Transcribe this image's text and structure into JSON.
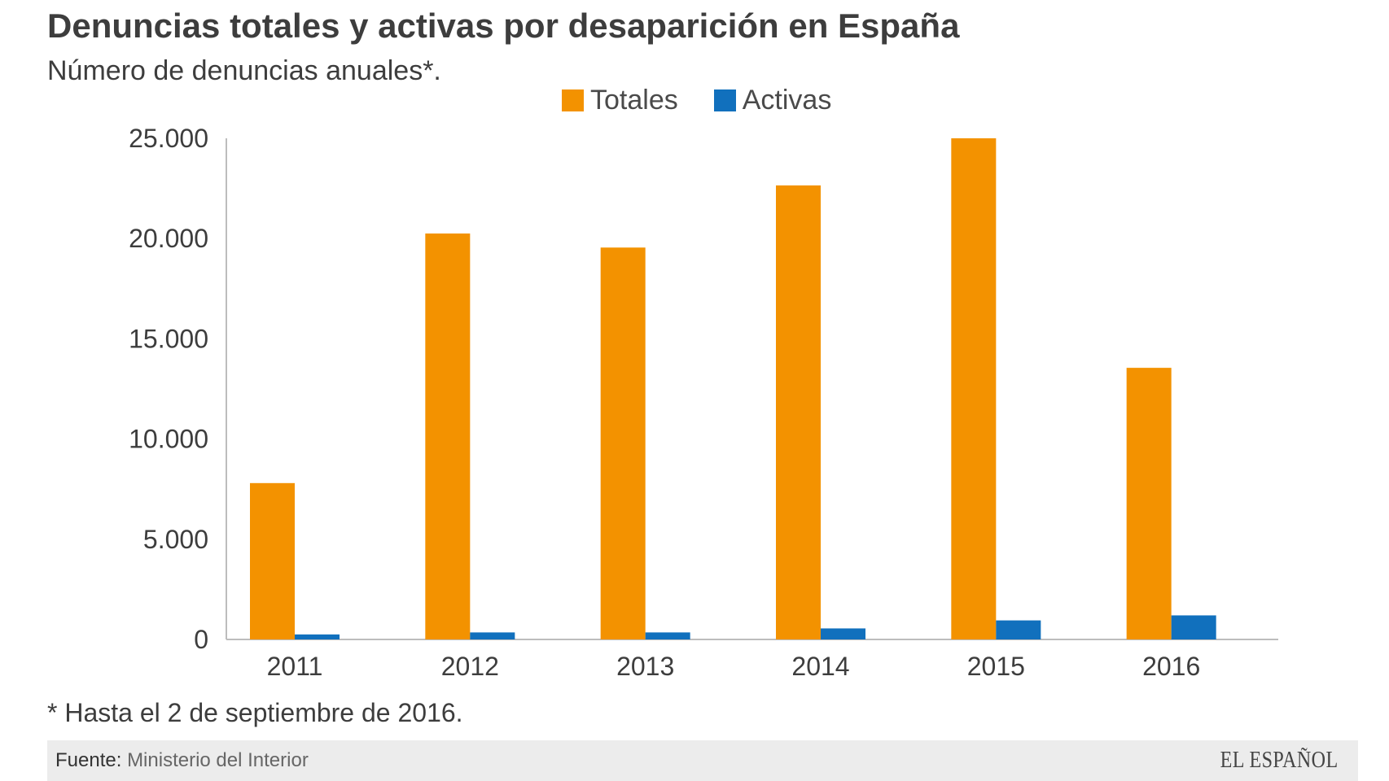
{
  "title": "Denuncias totales y activas por desaparición en España",
  "subtitle": "Número de denuncias anuales*.",
  "note": "* Hasta el 2 de septiembre de 2016.",
  "footer": {
    "source_label": "Fuente:",
    "source_value": "Ministerio del Interior",
    "brand": "EL ESPAÑOL"
  },
  "colors": {
    "totales": "#f39200",
    "activas": "#1170bd",
    "axis": "#bdbdbd",
    "tick_text": "#3d3d3d"
  },
  "chart_data": {
    "type": "bar",
    "categories": [
      "2011",
      "2012",
      "2013",
      "2014",
      "2015",
      "2016"
    ],
    "series": [
      {
        "name": "Totales",
        "values": [
          7800,
          20250,
          19550,
          22650,
          25000,
          13550
        ]
      },
      {
        "name": "Activas",
        "values": [
          250,
          350,
          350,
          550,
          950,
          1200
        ]
      }
    ],
    "ylim": [
      0,
      25000
    ],
    "yticks": [
      0,
      5000,
      10000,
      15000,
      20000,
      25000
    ],
    "ytick_labels": [
      "0",
      "5.000",
      "10.000",
      "15.000",
      "20.000",
      "25.000"
    ],
    "legend_position": "top-center",
    "grid": false
  }
}
